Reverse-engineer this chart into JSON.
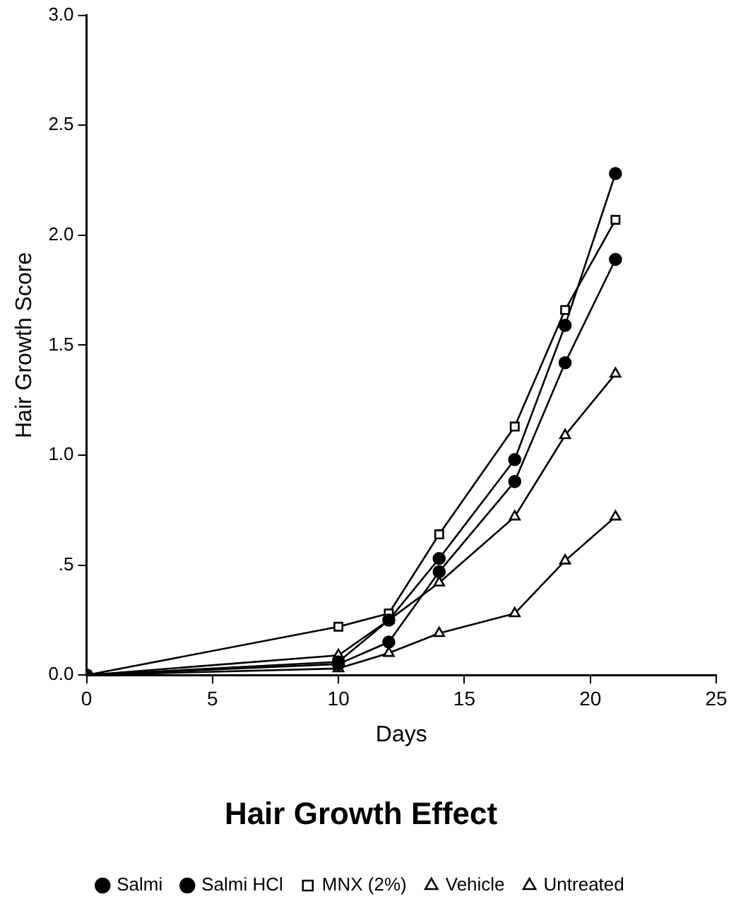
{
  "chart_data": {
    "type": "line",
    "title": "Hair Growth Effect",
    "xlabel": "Days",
    "ylabel": "Hair Growth Score",
    "x": [
      0,
      10,
      12,
      14,
      17,
      19,
      21
    ],
    "series": [
      {
        "name": "Salmi",
        "color": "#000000",
        "marker": "circle",
        "values": [
          0,
          0.06,
          0.25,
          0.53,
          0.98,
          1.59,
          2.28
        ]
      },
      {
        "name": "Salmi HCl",
        "color": "#000000",
        "marker": "circle",
        "values": [
          0,
          0.05,
          0.15,
          0.47,
          0.88,
          1.42,
          1.89
        ]
      },
      {
        "name": "MNX (2%)",
        "color": "#000000",
        "marker": "square",
        "values": [
          0,
          0.22,
          0.28,
          0.64,
          1.13,
          1.66,
          2.07
        ]
      },
      {
        "name": "Vehicle",
        "color": "#000000",
        "marker": "triangle",
        "values": [
          0,
          0.09,
          0.25,
          0.42,
          0.72,
          1.09,
          1.37
        ]
      },
      {
        "name": "Untreated",
        "color": "#000000",
        "marker": "triangle",
        "values": [
          0,
          0.03,
          0.1,
          0.19,
          0.28,
          0.52,
          0.72
        ]
      }
    ],
    "xlim": [
      0,
      25
    ],
    "xticks": [
      0,
      5,
      10,
      15,
      20,
      25
    ],
    "ylim": [
      0,
      3
    ],
    "yticks": [
      {
        "value": 0,
        "label": "0.0"
      },
      {
        "value": 0.5,
        "label": ".5"
      },
      {
        "value": 1,
        "label": "1.0"
      },
      {
        "value": 1.5,
        "label": "1.5"
      },
      {
        "value": 2,
        "label": "2.0"
      },
      {
        "value": 2.5,
        "label": "2.5"
      },
      {
        "value": 3,
        "label": "3.0"
      }
    ],
    "grid": false,
    "legend": "bottom",
    "line_style": "solid"
  }
}
